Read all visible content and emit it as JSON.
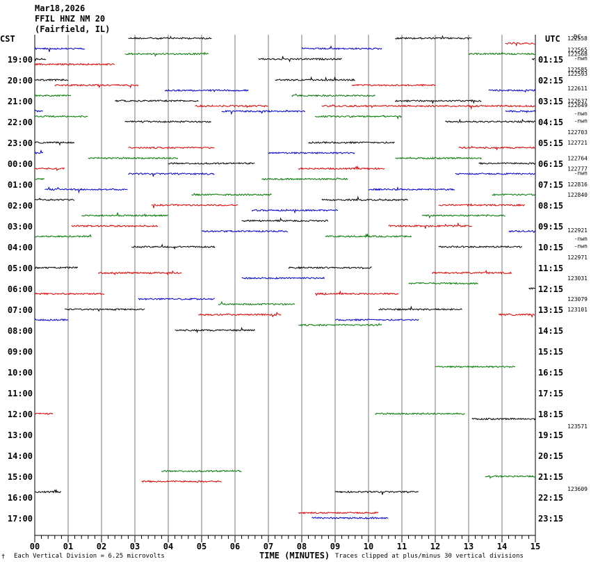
{
  "header": {
    "date": "Mar18,2026",
    "station": "FFIL HNZ NM 20",
    "location": "(Fairfield, IL)"
  },
  "left_zone": "CST",
  "right_zone": "UTC",
  "dc_label": "DC",
  "footer": {
    "scale_note": "Each Vertical Division =    6.25 microvolts",
    "xlabel": "TIME (MINUTES)",
    "clip_note": "Traces clipped at plus/minus 30 vertical divisions",
    "corner_mark": "†"
  },
  "chart_data": {
    "type": "line",
    "title": "FFIL HNZ NM 20 (Fairfield, IL)",
    "xlabel": "TIME (MINUTES)",
    "xlim": [
      0,
      15
    ],
    "x_ticks": [
      "00",
      "01",
      "02",
      "03",
      "04",
      "05",
      "06",
      "07",
      "08",
      "09",
      "10",
      "11",
      "12",
      "13",
      "14",
      "15"
    ],
    "grid": true,
    "hour_rows": [
      {
        "cst": "",
        "utc": ""
      },
      {
        "cst": "19:00",
        "utc": "01:15"
      },
      {
        "cst": "20:00",
        "utc": "02:15"
      },
      {
        "cst": "21:00",
        "utc": "03:15"
      },
      {
        "cst": "22:00",
        "utc": "04:15"
      },
      {
        "cst": "23:00",
        "utc": "05:15"
      },
      {
        "cst": "00:00",
        "utc": "06:15"
      },
      {
        "cst": "01:00",
        "utc": "07:15"
      },
      {
        "cst": "02:00",
        "utc": "08:15"
      },
      {
        "cst": "03:00",
        "utc": "09:15"
      },
      {
        "cst": "04:00",
        "utc": "10:15"
      },
      {
        "cst": "05:00",
        "utc": "11:15"
      },
      {
        "cst": "06:00",
        "utc": "12:15"
      },
      {
        "cst": "07:00",
        "utc": "13:15"
      },
      {
        "cst": "08:00",
        "utc": "14:15"
      },
      {
        "cst": "09:00",
        "utc": "15:15"
      },
      {
        "cst": "10:00",
        "utc": "16:15"
      },
      {
        "cst": "11:00",
        "utc": "17:15"
      },
      {
        "cst": "12:00",
        "utc": "18:15"
      },
      {
        "cst": "13:00",
        "utc": "19:15"
      },
      {
        "cst": "14:00",
        "utc": "20:15"
      },
      {
        "cst": "15:00",
        "utc": "21:15"
      },
      {
        "cst": "16:00",
        "utc": "22:15"
      },
      {
        "cst": "17:00",
        "utc": "23:15"
      }
    ],
    "dc_values": [
      {
        "row": 0.0,
        "text": "122558"
      },
      {
        "row": 0.55,
        "text": "122565"
      },
      {
        "row": 0.75,
        "text": "122568"
      },
      {
        "row": 0.95,
        "text": "-nwn"
      },
      {
        "row": 1.5,
        "text": "122585"
      },
      {
        "row": 1.7,
        "text": "122593"
      },
      {
        "row": 2.4,
        "text": "122611"
      },
      {
        "row": 3.0,
        "text": "122637"
      },
      {
        "row": 3.2,
        "text": "122649"
      },
      {
        "row": 3.6,
        "text": "-nwn"
      },
      {
        "row": 3.95,
        "text": "-nwn"
      },
      {
        "row": 4.5,
        "text": "122703"
      },
      {
        "row": 5.0,
        "text": "122721"
      },
      {
        "row": 5.75,
        "text": "122764"
      },
      {
        "row": 6.25,
        "text": "122777"
      },
      {
        "row": 6.45,
        "text": "-nwn"
      },
      {
        "row": 7.0,
        "text": "122816"
      },
      {
        "row": 7.5,
        "text": "122840"
      },
      {
        "row": 9.2,
        "text": "122921"
      },
      {
        "row": 9.6,
        "text": "-nwn"
      },
      {
        "row": 9.95,
        "text": "-nwn"
      },
      {
        "row": 10.5,
        "text": "122971"
      },
      {
        "row": 11.5,
        "text": "123031"
      },
      {
        "row": 12.5,
        "text": "123079"
      },
      {
        "row": 13.0,
        "text": "123101"
      },
      {
        "row": 18.6,
        "text": "123571"
      },
      {
        "row": 21.6,
        "text": "123609"
      }
    ],
    "traces": [
      {
        "row": 0.0,
        "x0": 2.8,
        "x1": 5.3,
        "color": "black"
      },
      {
        "row": 0.0,
        "x0": 10.8,
        "x1": 13.1,
        "color": "black"
      },
      {
        "row": 0.25,
        "x0": 14.1,
        "x1": 15.0,
        "color": "red"
      },
      {
        "row": 0.5,
        "x0": 0.0,
        "x1": 1.5,
        "color": "blue"
      },
      {
        "row": 0.5,
        "x0": 8.0,
        "x1": 10.4,
        "color": "blue"
      },
      {
        "row": 0.75,
        "x0": 2.7,
        "x1": 5.2,
        "color": "green"
      },
      {
        "row": 0.75,
        "x0": 13.0,
        "x1": 15.0,
        "color": "green"
      },
      {
        "row": 1.0,
        "x0": 0.0,
        "x1": 0.35,
        "color": "black"
      },
      {
        "row": 1.0,
        "x0": 6.7,
        "x1": 9.2,
        "color": "black"
      },
      {
        "row": 1.0,
        "x0": 14.9,
        "x1": 15.0,
        "color": "black"
      },
      {
        "row": 1.25,
        "x0": 0.0,
        "x1": 2.4,
        "color": "red"
      },
      {
        "row": 2.0,
        "x0": 0.0,
        "x1": 1.0,
        "color": "black"
      },
      {
        "row": 2.0,
        "x0": 7.2,
        "x1": 9.6,
        "color": "black"
      },
      {
        "row": 2.25,
        "x0": 0.6,
        "x1": 3.1,
        "color": "red"
      },
      {
        "row": 2.25,
        "x0": 9.5,
        "x1": 12.0,
        "color": "red"
      },
      {
        "row": 2.5,
        "x0": 3.9,
        "x1": 6.4,
        "color": "blue"
      },
      {
        "row": 2.5,
        "x0": 13.6,
        "x1": 15.0,
        "color": "blue"
      },
      {
        "row": 2.75,
        "x0": 0.0,
        "x1": 1.1,
        "color": "green"
      },
      {
        "row": 2.75,
        "x0": 7.7,
        "x1": 10.2,
        "color": "green"
      },
      {
        "row": 3.0,
        "x0": 2.4,
        "x1": 4.9,
        "color": "black"
      },
      {
        "row": 3.0,
        "x0": 10.8,
        "x1": 13.4,
        "color": "black"
      },
      {
        "row": 3.25,
        "x0": 4.8,
        "x1": 7.0,
        "color": "red"
      },
      {
        "row": 3.25,
        "x0": 8.6,
        "x1": 15.0,
        "color": "red"
      },
      {
        "row": 3.5,
        "x0": 0.0,
        "x1": 0.25,
        "color": "blue"
      },
      {
        "row": 3.5,
        "x0": 5.6,
        "x1": 8.1,
        "color": "blue"
      },
      {
        "row": 3.5,
        "x0": 14.1,
        "x1": 15.0,
        "color": "blue"
      },
      {
        "row": 3.75,
        "x0": 0.0,
        "x1": 1.6,
        "color": "green"
      },
      {
        "row": 3.75,
        "x0": 8.4,
        "x1": 11.0,
        "color": "green"
      },
      {
        "row": 4.0,
        "x0": 2.7,
        "x1": 5.3,
        "color": "black"
      },
      {
        "row": 4.0,
        "x0": 12.3,
        "x1": 15.0,
        "color": "black"
      },
      {
        "row": 5.0,
        "x0": 0.0,
        "x1": 1.2,
        "color": "black"
      },
      {
        "row": 5.0,
        "x0": 8.2,
        "x1": 10.8,
        "color": "black"
      },
      {
        "row": 5.25,
        "x0": 2.8,
        "x1": 5.4,
        "color": "red"
      },
      {
        "row": 5.25,
        "x0": 12.7,
        "x1": 15.0,
        "color": "red"
      },
      {
        "row": 5.5,
        "x0": 0.0,
        "x1": 0.25,
        "color": "blue"
      },
      {
        "row": 5.5,
        "x0": 7.0,
        "x1": 9.6,
        "color": "blue"
      },
      {
        "row": 5.75,
        "x0": 1.6,
        "x1": 4.3,
        "color": "green"
      },
      {
        "row": 5.75,
        "x0": 10.8,
        "x1": 13.4,
        "color": "green"
      },
      {
        "row": 6.0,
        "x0": 4.0,
        "x1": 6.6,
        "color": "black"
      },
      {
        "row": 6.0,
        "x0": 13.3,
        "x1": 15.0,
        "color": "black"
      },
      {
        "row": 6.25,
        "x0": 0.0,
        "x1": 0.9,
        "color": "red"
      },
      {
        "row": 6.25,
        "x0": 7.9,
        "x1": 10.5,
        "color": "red"
      },
      {
        "row": 6.5,
        "x0": 2.8,
        "x1": 5.4,
        "color": "blue"
      },
      {
        "row": 6.5,
        "x0": 12.6,
        "x1": 15.0,
        "color": "blue"
      },
      {
        "row": 6.75,
        "x0": 0.0,
        "x1": 0.3,
        "color": "green"
      },
      {
        "row": 6.75,
        "x0": 6.8,
        "x1": 9.4,
        "color": "green"
      },
      {
        "row": 7.25,
        "x0": 0.3,
        "x1": 2.8,
        "color": "blue"
      },
      {
        "row": 7.25,
        "x0": 10.0,
        "x1": 12.6,
        "color": "blue"
      },
      {
        "row": 7.5,
        "x0": 4.7,
        "x1": 7.1,
        "color": "green"
      },
      {
        "row": 7.5,
        "x0": 13.7,
        "x1": 15.0,
        "color": "green"
      },
      {
        "row": 7.75,
        "x0": 0.0,
        "x1": 1.2,
        "color": "black"
      },
      {
        "row": 7.75,
        "x0": 8.6,
        "x1": 11.2,
        "color": "black"
      },
      {
        "row": 8.0,
        "x0": 3.5,
        "x1": 6.1,
        "color": "red"
      },
      {
        "row": 8.0,
        "x0": 12.1,
        "x1": 14.7,
        "color": "red"
      },
      {
        "row": 8.25,
        "x0": 6.5,
        "x1": 9.1,
        "color": "blue"
      },
      {
        "row": 8.5,
        "x0": 1.4,
        "x1": 4.0,
        "color": "green"
      },
      {
        "row": 8.5,
        "x0": 11.6,
        "x1": 14.1,
        "color": "green"
      },
      {
        "row": 8.75,
        "x0": 6.2,
        "x1": 8.8,
        "color": "black"
      },
      {
        "row": 9.0,
        "x0": 1.1,
        "x1": 3.7,
        "color": "red"
      },
      {
        "row": 9.0,
        "x0": 10.6,
        "x1": 13.1,
        "color": "red"
      },
      {
        "row": 9.25,
        "x0": 5.0,
        "x1": 7.6,
        "color": "blue"
      },
      {
        "row": 9.25,
        "x0": 14.2,
        "x1": 15.0,
        "color": "blue"
      },
      {
        "row": 9.5,
        "x0": 0.0,
        "x1": 1.7,
        "color": "green"
      },
      {
        "row": 9.5,
        "x0": 8.7,
        "x1": 11.3,
        "color": "green"
      },
      {
        "row": 10.0,
        "x0": 2.9,
        "x1": 5.4,
        "color": "black"
      },
      {
        "row": 10.0,
        "x0": 12.1,
        "x1": 14.6,
        "color": "black"
      },
      {
        "row": 11.0,
        "x0": 0.0,
        "x1": 1.3,
        "color": "black"
      },
      {
        "row": 11.0,
        "x0": 7.6,
        "x1": 10.1,
        "color": "black"
      },
      {
        "row": 11.25,
        "x0": 1.9,
        "x1": 4.4,
        "color": "red"
      },
      {
        "row": 11.25,
        "x0": 11.9,
        "x1": 14.3,
        "color": "red"
      },
      {
        "row": 11.5,
        "x0": 6.2,
        "x1": 8.7,
        "color": "blue"
      },
      {
        "row": 11.75,
        "x0": 11.2,
        "x1": 13.3,
        "color": "green"
      },
      {
        "row": 12.0,
        "x0": 14.8,
        "x1": 15.0,
        "color": "black"
      },
      {
        "row": 12.25,
        "x0": 0.0,
        "x1": 2.1,
        "color": "red"
      },
      {
        "row": 12.25,
        "x0": 8.4,
        "x1": 10.9,
        "color": "red"
      },
      {
        "row": 12.5,
        "x0": 3.1,
        "x1": 5.4,
        "color": "blue"
      },
      {
        "row": 12.75,
        "x0": 5.5,
        "x1": 7.8,
        "color": "green"
      },
      {
        "row": 13.0,
        "x0": 0.9,
        "x1": 3.3,
        "color": "black"
      },
      {
        "row": 13.0,
        "x0": 10.3,
        "x1": 12.8,
        "color": "black"
      },
      {
        "row": 13.25,
        "x0": 4.9,
        "x1": 7.4,
        "color": "red"
      },
      {
        "row": 13.25,
        "x0": 13.9,
        "x1": 15.0,
        "color": "red"
      },
      {
        "row": 13.5,
        "x0": 0.0,
        "x1": 1.0,
        "color": "blue"
      },
      {
        "row": 13.5,
        "x0": 9.0,
        "x1": 11.5,
        "color": "blue"
      },
      {
        "row": 13.75,
        "x0": 7.9,
        "x1": 10.4,
        "color": "green"
      },
      {
        "row": 14.0,
        "x0": 4.2,
        "x1": 6.6,
        "color": "black"
      },
      {
        "row": 15.75,
        "x0": 12.0,
        "x1": 14.4,
        "color": "green"
      },
      {
        "row": 18.0,
        "x0": 0.0,
        "x1": 0.55,
        "color": "red"
      },
      {
        "row": 18.0,
        "x0": 10.2,
        "x1": 12.9,
        "color": "green"
      },
      {
        "row": 18.25,
        "x0": 13.1,
        "x1": 15.0,
        "color": "black"
      },
      {
        "row": 20.75,
        "x0": 3.8,
        "x1": 6.2,
        "color": "green"
      },
      {
        "row": 21.25,
        "x0": 3.2,
        "x1": 5.6,
        "color": "red"
      },
      {
        "row": 21.0,
        "x0": 13.5,
        "x1": 15.0,
        "color": "green"
      },
      {
        "row": 21.75,
        "x0": 0.0,
        "x1": 0.8,
        "color": "black"
      },
      {
        "row": 21.75,
        "x0": 9.0,
        "x1": 11.5,
        "color": "black"
      },
      {
        "row": 22.75,
        "x0": 7.9,
        "x1": 10.3,
        "color": "red"
      },
      {
        "row": 23.0,
        "x0": 8.3,
        "x1": 10.6,
        "color": "blue"
      }
    ]
  }
}
